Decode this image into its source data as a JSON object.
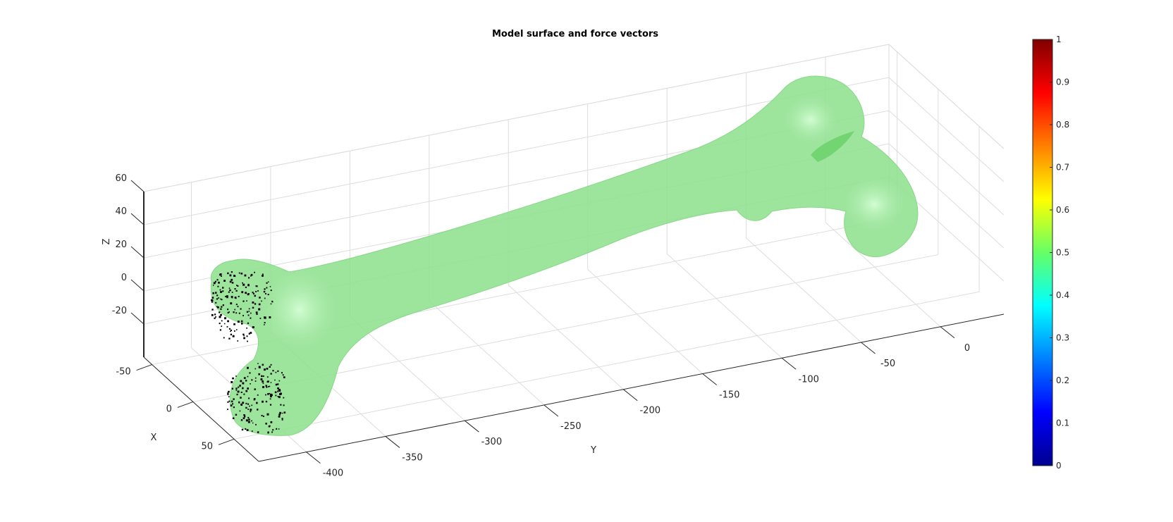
{
  "chart_data": {
    "type": "surface3d",
    "title": "Model surface and force vectors",
    "xlabel": "X",
    "ylabel": "Y",
    "zlabel": "Z",
    "x_ticks": [
      "-50",
      "0",
      "50"
    ],
    "y_ticks": [
      "-400",
      "-350",
      "-300",
      "-250",
      "-200",
      "-150",
      "-100",
      "-50",
      "0"
    ],
    "z_ticks": [
      "-20",
      "0",
      "20",
      "40",
      "60"
    ],
    "colorbar": {
      "colormap": "jet",
      "range": [
        0,
        1
      ],
      "ticks": [
        "0",
        "0.1",
        "0.2",
        "0.3",
        "0.4",
        "0.5",
        "0.6",
        "0.7",
        "0.8",
        "0.9",
        "1"
      ]
    },
    "surface_color": "#8fe08f",
    "force_vector_color": "#000000",
    "grid": true
  }
}
